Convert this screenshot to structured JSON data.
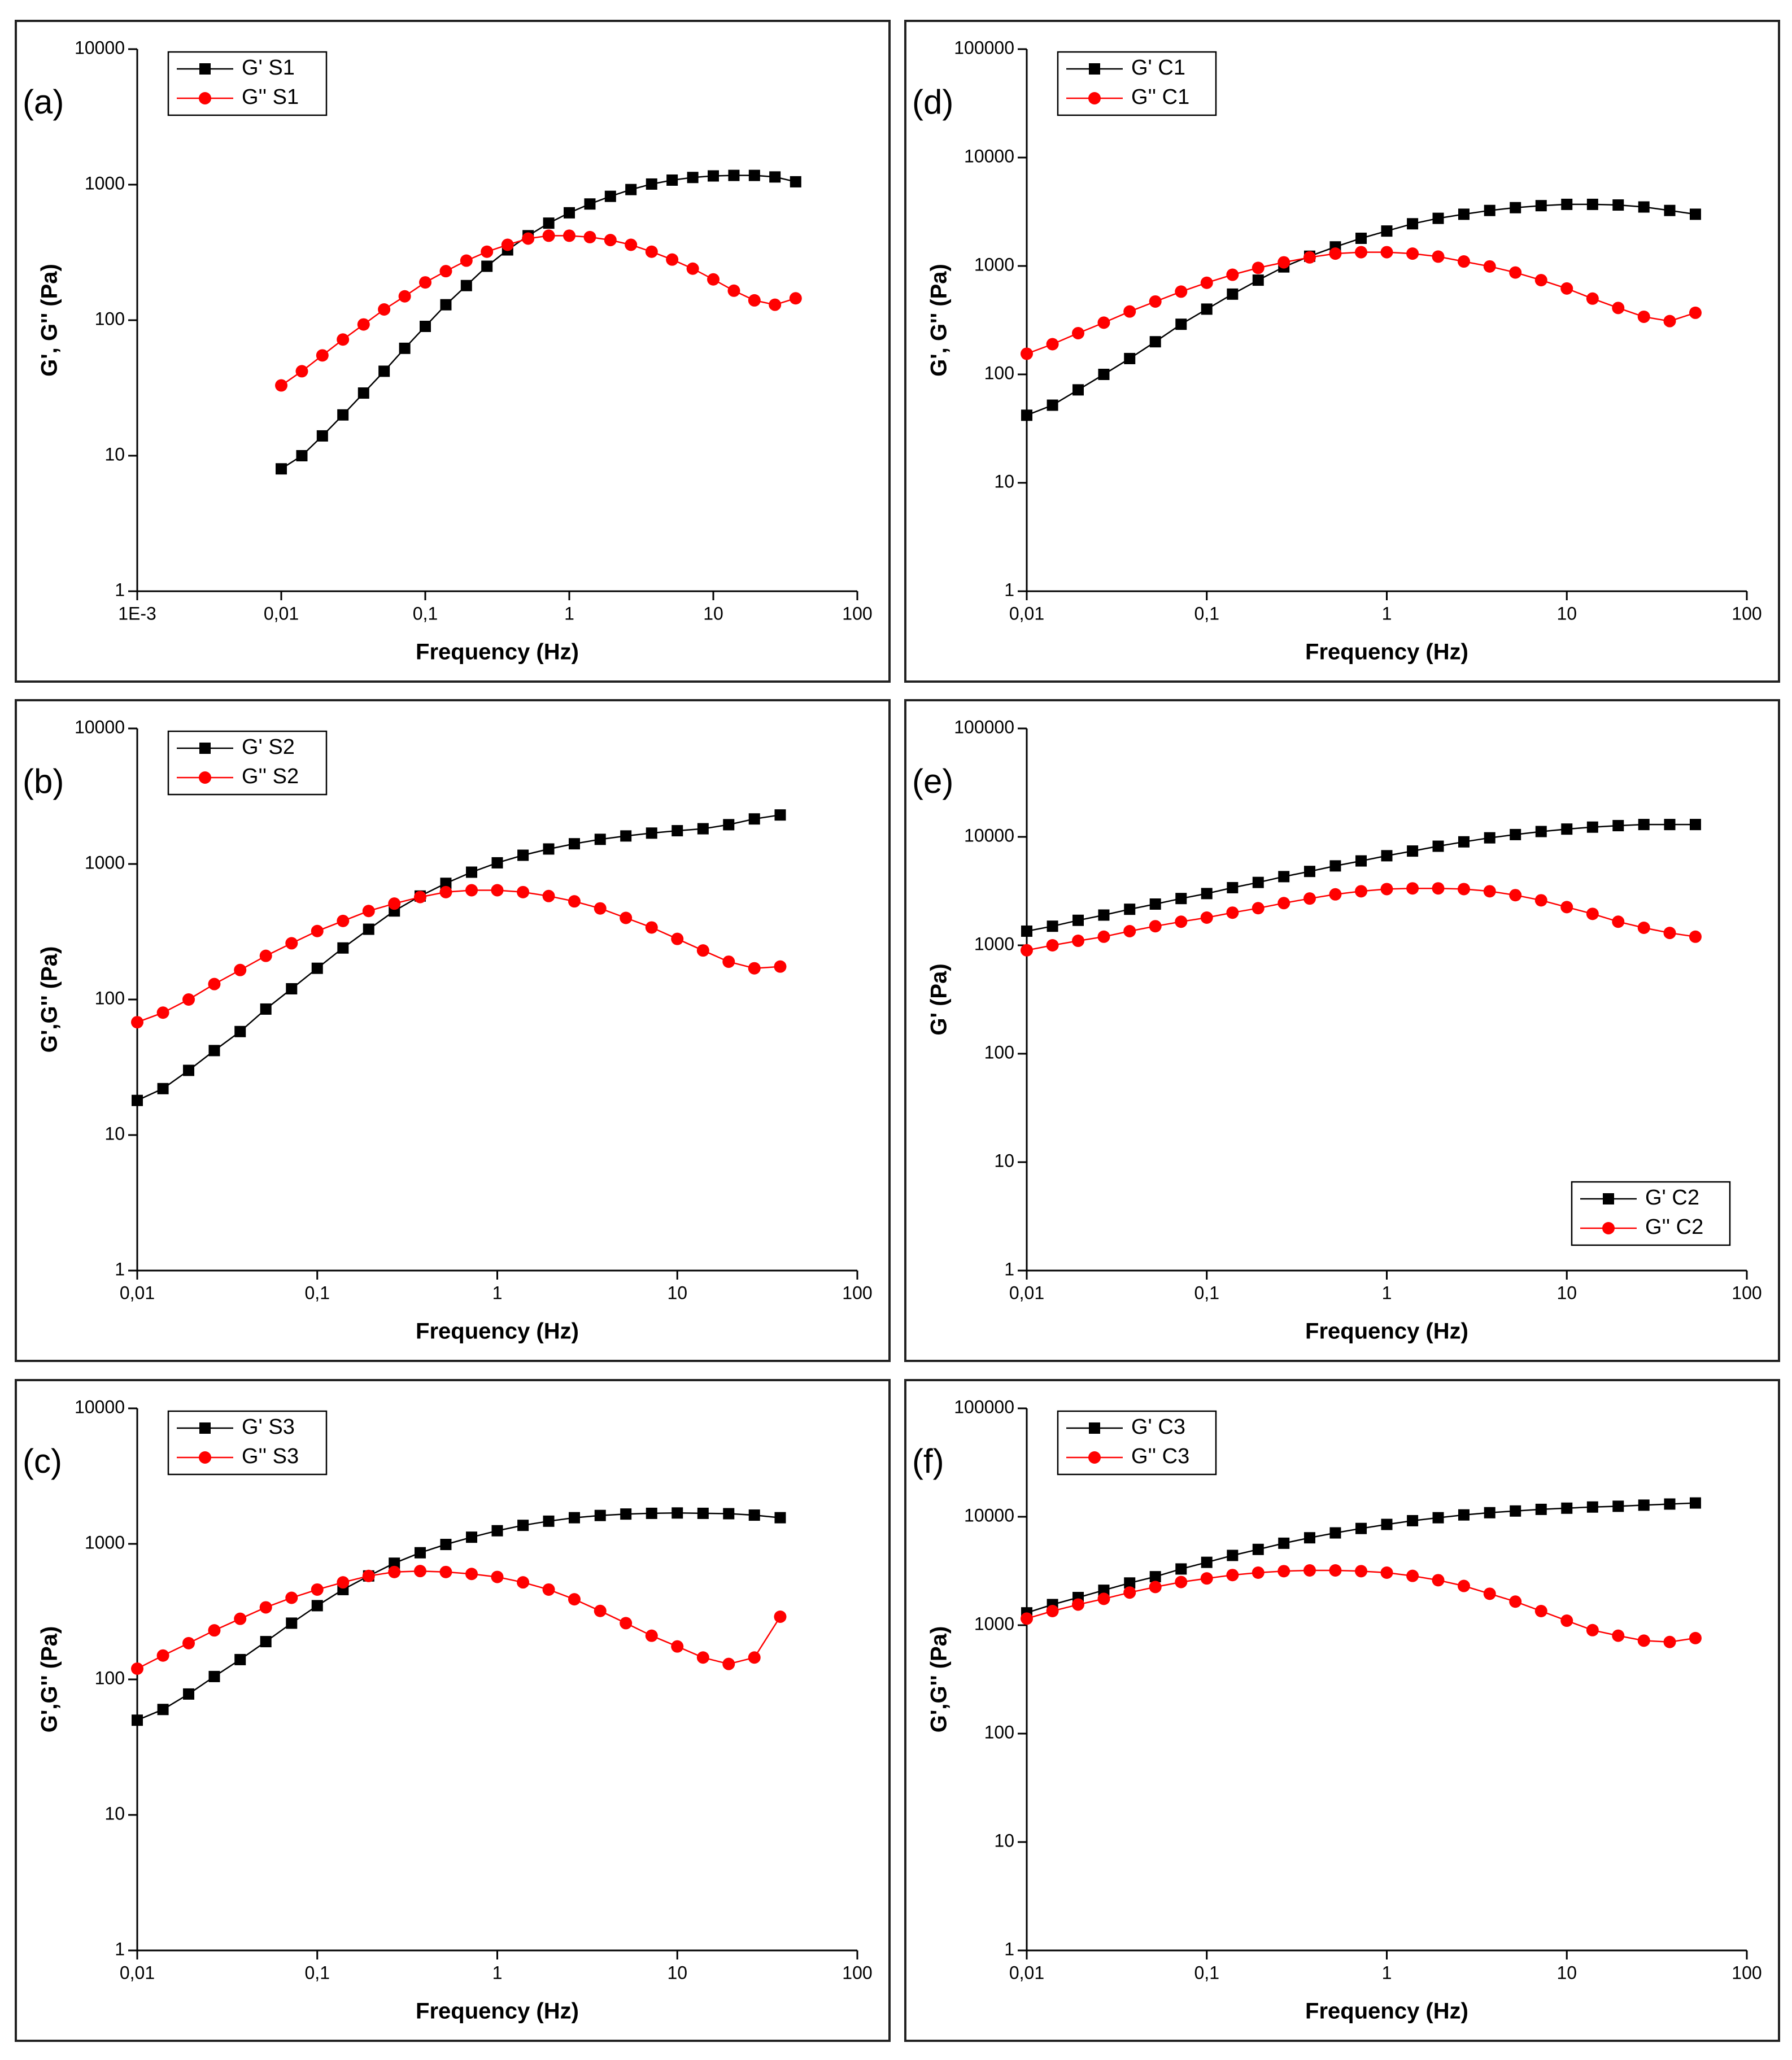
{
  "chart_data": [
    {
      "type": "line",
      "panel_label": "(a)",
      "xlabel": "Frequency (Hz)",
      "ylabel": "G', G'' (Pa)",
      "xscale": "log",
      "yscale": "log",
      "legend": "top-left",
      "xlim": [
        0.001,
        100
      ],
      "xticks": [
        {
          "value": 0.001,
          "label": "1E-3"
        },
        {
          "value": 0.01,
          "label": "0,01"
        },
        {
          "value": 0.1,
          "label": "0,1"
        },
        1,
        10,
        100
      ],
      "ylim": [
        1,
        10000
      ],
      "yticks": [
        1,
        10,
        100,
        1000,
        10000
      ],
      "x": [
        0.01,
        0.0139,
        0.0193,
        0.0268,
        0.0373,
        0.0518,
        0.072,
        0.1,
        0.139,
        0.193,
        0.268,
        0.373,
        0.518,
        0.72,
        1,
        1.39,
        1.93,
        2.68,
        3.73,
        5.18,
        7.2,
        10,
        13.9,
        19.3,
        26.8,
        37.3
      ],
      "series": [
        {
          "name": "G' S1",
          "color": "#000000",
          "marker": "square",
          "values": [
            8,
            10,
            14,
            20,
            29,
            42,
            62,
            90,
            130,
            180,
            250,
            330,
            420,
            520,
            620,
            720,
            820,
            920,
            1010,
            1080,
            1130,
            1160,
            1170,
            1170,
            1140,
            1050
          ]
        },
        {
          "name": "G'' S1",
          "color": "#ff0000",
          "marker": "circle",
          "values": [
            33,
            42,
            55,
            72,
            93,
            120,
            150,
            190,
            230,
            275,
            320,
            360,
            400,
            420,
            420,
            410,
            390,
            360,
            320,
            280,
            240,
            200,
            165,
            140,
            130,
            145
          ]
        }
      ]
    },
    {
      "type": "line",
      "panel_label": "(b)",
      "xlabel": "Frequency (Hz)",
      "ylabel": "G',G'' (Pa)",
      "xscale": "log",
      "yscale": "log",
      "legend": "top-left",
      "xlim": [
        0.01,
        100
      ],
      "xticks": [
        {
          "value": 0.01,
          "label": "0,01"
        },
        {
          "value": 0.1,
          "label": "0,1"
        },
        1,
        10,
        100
      ],
      "ylim": [
        1,
        10000
      ],
      "yticks": [
        1,
        10,
        100,
        1000,
        10000
      ],
      "x": [
        0.01,
        0.0139,
        0.0193,
        0.0268,
        0.0373,
        0.0518,
        0.072,
        0.1,
        0.139,
        0.193,
        0.268,
        0.373,
        0.518,
        0.72,
        1,
        1.39,
        1.93,
        2.68,
        3.73,
        5.18,
        7.2,
        10,
        13.9,
        19.3,
        26.8,
        37.3
      ],
      "series": [
        {
          "name": "G' S2",
          "color": "#000000",
          "marker": "square",
          "values": [
            18,
            22,
            30,
            42,
            58,
            85,
            120,
            170,
            240,
            330,
            450,
            580,
            720,
            870,
            1020,
            1160,
            1290,
            1410,
            1520,
            1610,
            1690,
            1760,
            1820,
            1950,
            2150,
            2300
          ]
        },
        {
          "name": "G'' S2",
          "color": "#ff0000",
          "marker": "circle",
          "values": [
            68,
            80,
            100,
            130,
            165,
            210,
            260,
            320,
            380,
            450,
            510,
            570,
            620,
            640,
            640,
            620,
            580,
            530,
            470,
            400,
            340,
            280,
            230,
            190,
            170,
            175
          ]
        }
      ]
    },
    {
      "type": "line",
      "panel_label": "(c)",
      "xlabel": "Frequency (Hz)",
      "ylabel": "G',G'' (Pa)",
      "xscale": "log",
      "yscale": "log",
      "legend": "top-left",
      "xlim": [
        0.01,
        100
      ],
      "xticks": [
        {
          "value": 0.01,
          "label": "0,01"
        },
        {
          "value": 0.1,
          "label": "0,1"
        },
        1,
        10,
        100
      ],
      "ylim": [
        1,
        10000
      ],
      "yticks": [
        1,
        10,
        100,
        1000,
        10000
      ],
      "x": [
        0.01,
        0.0139,
        0.0193,
        0.0268,
        0.0373,
        0.0518,
        0.072,
        0.1,
        0.139,
        0.193,
        0.268,
        0.373,
        0.518,
        0.72,
        1,
        1.39,
        1.93,
        2.68,
        3.73,
        5.18,
        7.2,
        10,
        13.9,
        19.3,
        26.8,
        37.3
      ],
      "series": [
        {
          "name": "G' S3",
          "color": "#000000",
          "marker": "square",
          "values": [
            50,
            60,
            78,
            105,
            140,
            190,
            260,
            350,
            460,
            580,
            720,
            860,
            990,
            1120,
            1250,
            1370,
            1470,
            1560,
            1620,
            1660,
            1680,
            1690,
            1680,
            1670,
            1630,
            1560
          ]
        },
        {
          "name": "G'' S3",
          "color": "#ff0000",
          "marker": "circle",
          "values": [
            120,
            150,
            185,
            230,
            280,
            340,
            400,
            460,
            520,
            580,
            620,
            630,
            620,
            600,
            570,
            520,
            460,
            390,
            320,
            260,
            210,
            175,
            145,
            130,
            145,
            290
          ]
        }
      ]
    },
    {
      "type": "line",
      "panel_label": "(d)",
      "xlabel": "Frequency (Hz)",
      "ylabel": "G', G'' (Pa)",
      "xscale": "log",
      "yscale": "log",
      "legend": "top-left",
      "xlim": [
        0.01,
        100
      ],
      "xticks": [
        {
          "value": 0.01,
          "label": "0,01"
        },
        {
          "value": 0.1,
          "label": "0,1"
        },
        1,
        10,
        100
      ],
      "ylim": [
        1,
        100000
      ],
      "yticks": [
        1,
        10,
        100,
        1000,
        10000,
        100000
      ],
      "x": [
        0.01,
        0.0139,
        0.0193,
        0.0268,
        0.0373,
        0.0518,
        0.072,
        0.1,
        0.139,
        0.193,
        0.268,
        0.373,
        0.518,
        0.72,
        1,
        1.39,
        1.93,
        2.68,
        3.73,
        5.18,
        7.2,
        10,
        13.9,
        19.3,
        26.8,
        37.3,
        51.8
      ],
      "series": [
        {
          "name": "G' C1",
          "color": "#000000",
          "marker": "square",
          "values": [
            42,
            52,
            72,
            100,
            140,
            200,
            290,
            400,
            550,
            740,
            980,
            1230,
            1500,
            1800,
            2100,
            2450,
            2750,
            3000,
            3250,
            3450,
            3600,
            3700,
            3700,
            3650,
            3500,
            3250,
            3000
          ]
        },
        {
          "name": "G'' C1",
          "color": "#ff0000",
          "marker": "circle",
          "values": [
            155,
            190,
            240,
            300,
            380,
            470,
            580,
            700,
            830,
            960,
            1080,
            1200,
            1300,
            1340,
            1340,
            1300,
            1220,
            1100,
            990,
            870,
            740,
            620,
            500,
            410,
            340,
            310,
            370
          ]
        }
      ]
    },
    {
      "type": "line",
      "panel_label": "(e)",
      "xlabel": "Frequency (Hz)",
      "ylabel": "G' (Pa)",
      "xscale": "log",
      "yscale": "log",
      "legend": "bottom-right",
      "xlim": [
        0.01,
        100
      ],
      "xticks": [
        {
          "value": 0.01,
          "label": "0,01"
        },
        {
          "value": 0.1,
          "label": "0,1"
        },
        1,
        10,
        100
      ],
      "ylim": [
        1,
        100000
      ],
      "yticks": [
        1,
        10,
        100,
        1000,
        10000,
        100000
      ],
      "x": [
        0.01,
        0.0139,
        0.0193,
        0.0268,
        0.0373,
        0.0518,
        0.072,
        0.1,
        0.139,
        0.193,
        0.268,
        0.373,
        0.518,
        0.72,
        1,
        1.39,
        1.93,
        2.68,
        3.73,
        5.18,
        7.2,
        10,
        13.9,
        19.3,
        26.8,
        37.3,
        51.8
      ],
      "series": [
        {
          "name": "G' C2",
          "color": "#000000",
          "marker": "square",
          "values": [
            1350,
            1500,
            1700,
            1900,
            2150,
            2400,
            2700,
            3000,
            3400,
            3800,
            4300,
            4800,
            5400,
            6000,
            6700,
            7400,
            8200,
            9000,
            9800,
            10500,
            11200,
            11800,
            12300,
            12700,
            13000,
            13000,
            13000
          ]
        },
        {
          "name": "G'' C2",
          "color": "#ff0000",
          "marker": "circle",
          "values": [
            900,
            1000,
            1100,
            1200,
            1350,
            1500,
            1650,
            1800,
            2000,
            2200,
            2450,
            2700,
            2950,
            3150,
            3300,
            3350,
            3350,
            3300,
            3150,
            2900,
            2600,
            2250,
            1950,
            1650,
            1450,
            1300,
            1200
          ]
        }
      ]
    },
    {
      "type": "line",
      "panel_label": "(f)",
      "xlabel": "Frequency (Hz)",
      "ylabel": "G',G'' (Pa)",
      "xscale": "log",
      "yscale": "log",
      "legend": "top-left",
      "xlim": [
        0.01,
        100
      ],
      "xticks": [
        {
          "value": 0.01,
          "label": "0,01"
        },
        {
          "value": 0.1,
          "label": "0,1"
        },
        1,
        10,
        100
      ],
      "ylim": [
        1,
        100000
      ],
      "yticks": [
        1,
        10,
        100,
        1000,
        10000,
        100000
      ],
      "x": [
        0.01,
        0.0139,
        0.0193,
        0.0268,
        0.0373,
        0.0518,
        0.072,
        0.1,
        0.139,
        0.193,
        0.268,
        0.373,
        0.518,
        0.72,
        1,
        1.39,
        1.93,
        2.68,
        3.73,
        5.18,
        7.2,
        10,
        13.9,
        19.3,
        26.8,
        37.3,
        51.8
      ],
      "series": [
        {
          "name": "G' C3",
          "color": "#000000",
          "marker": "square",
          "values": [
            1300,
            1550,
            1800,
            2100,
            2450,
            2800,
            3300,
            3800,
            4400,
            5000,
            5700,
            6400,
            7100,
            7800,
            8500,
            9200,
            9800,
            10400,
            10900,
            11300,
            11700,
            12000,
            12300,
            12500,
            12800,
            13100,
            13400
          ]
        },
        {
          "name": "G'' C3",
          "color": "#ff0000",
          "marker": "circle",
          "values": [
            1150,
            1350,
            1550,
            1750,
            2000,
            2250,
            2500,
            2700,
            2900,
            3050,
            3150,
            3200,
            3200,
            3150,
            3050,
            2850,
            2600,
            2300,
            1950,
            1650,
            1350,
            1100,
            900,
            800,
            720,
            700,
            760
          ]
        }
      ]
    }
  ]
}
